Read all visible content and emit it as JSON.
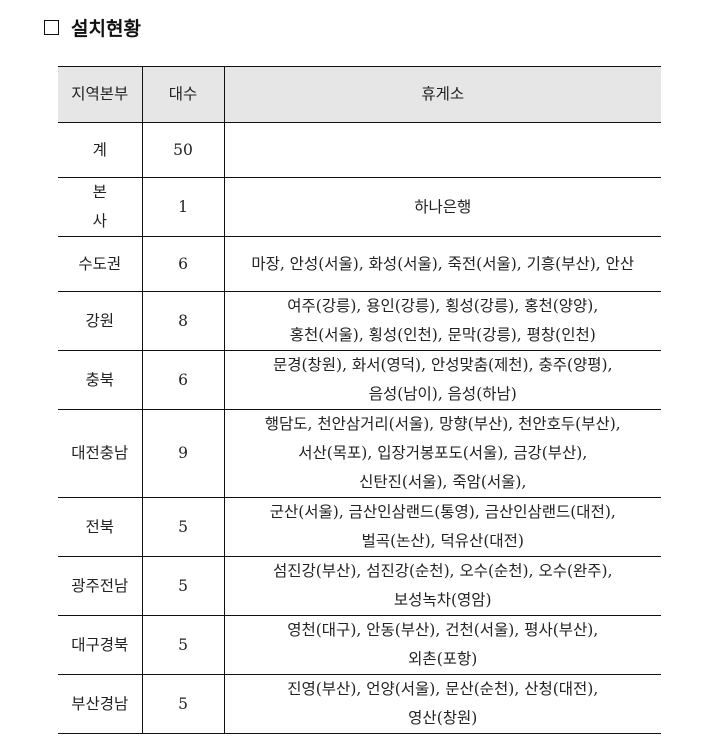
{
  "section": {
    "title": "설치현황"
  },
  "table": {
    "headers": [
      "지역본부",
      "대수",
      "휴게소"
    ],
    "rows": [
      {
        "region": "계",
        "count": "50",
        "lines": []
      },
      {
        "region": "본 사",
        "count": "1",
        "lines": [
          "하나은행"
        ]
      },
      {
        "region": "수도권",
        "count": "6",
        "lines": [
          "마장, 안성(서울), 화성(서울), 죽전(서울), 기흥(부산), 안산"
        ]
      },
      {
        "region": "강원",
        "count": "8",
        "lines": [
          "여주(강릉), 용인(강릉), 횡성(강릉), 홍천(양양),",
          "홍천(서울), 횡성(인천), 문막(강릉), 평창(인천)"
        ]
      },
      {
        "region": "충북",
        "count": "6",
        "lines": [
          "문경(창원), 화서(영덕), 안성맞춤(제천), 충주(양평),",
          "음성(남이), 음성(하남)"
        ]
      },
      {
        "region": "대전충남",
        "count": "9",
        "lines": [
          "행담도, 천안삼거리(서울), 망향(부산), 천안호두(부산),",
          "서산(목포), 입장거봉포도(서울), 금강(부산),",
          "신탄진(서울), 죽암(서울),"
        ]
      },
      {
        "region": "전북",
        "count": "5",
        "lines": [
          "군산(서울), 금산인삼랜드(통영), 금산인삼랜드(대전),",
          "벌곡(논산), 덕유산(대전)"
        ]
      },
      {
        "region": "광주전남",
        "count": "5",
        "lines": [
          "섬진강(부산), 섬진강(순천), 오수(순천), 오수(완주),",
          "보성녹차(영암)"
        ]
      },
      {
        "region": "대구경북",
        "count": "5",
        "lines": [
          "영천(대구), 안동(부산), 건천(서울), 평사(부산),",
          "외촌(포항)"
        ]
      },
      {
        "region": "부산경남",
        "count": "5",
        "lines": [
          "진영(부산), 언양(서울), 문산(순천), 산청(대전),",
          "영산(창원)"
        ]
      }
    ]
  }
}
